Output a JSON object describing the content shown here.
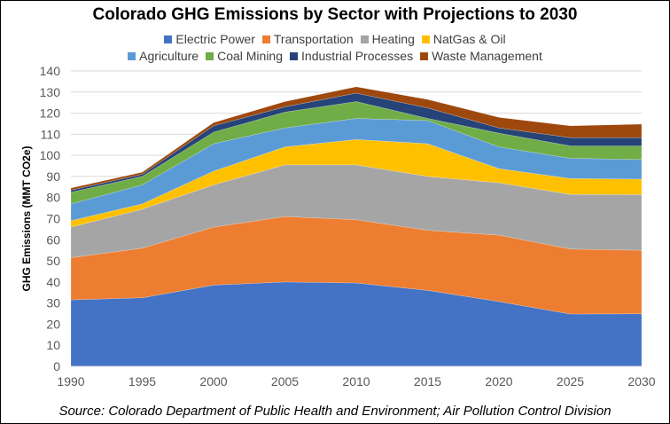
{
  "chart_data": {
    "type": "area",
    "stacked": true,
    "title": "Colorado GHG Emissions by Sector with Projections to 2030",
    "ylabel": "GHG Emissions (MMT CO2e)",
    "xlabel": "",
    "ylim": [
      0,
      140
    ],
    "ytick_step": 10,
    "grid": true,
    "legend_placement": "top",
    "x": [
      1990,
      1995,
      2000,
      2005,
      2010,
      2015,
      2020,
      2025,
      2030
    ],
    "series": [
      {
        "name": "Electric Power",
        "color": "#4472C4",
        "values": [
          31.5,
          32.5,
          38.5,
          40,
          39.5,
          36,
          30.7,
          24.8,
          24.9
        ]
      },
      {
        "name": "Transportation",
        "color": "#ED7D31",
        "values": [
          20,
          23.5,
          27.5,
          31,
          30,
          28.5,
          31.5,
          30.8,
          30.1
        ]
      },
      {
        "name": "Heating",
        "color": "#A5A5A5",
        "values": [
          14.5,
          18.5,
          20,
          24.5,
          26,
          25.5,
          24.8,
          25.9,
          26.4
        ]
      },
      {
        "name": "NatGas & Oil",
        "color": "#FFC000",
        "values": [
          3,
          2.5,
          6.5,
          8.5,
          12,
          15.5,
          6.7,
          7.5,
          7.3
        ]
      },
      {
        "name": "Agriculture",
        "color": "#5B9BD5",
        "values": [
          8,
          9,
          13,
          9,
          10,
          11,
          10.3,
          9.6,
          9.3
        ]
      },
      {
        "name": "Coal Mining",
        "color": "#70AD47",
        "values": [
          5.5,
          4,
          5.5,
          7.5,
          8,
          1,
          6.5,
          5.9,
          6.5
        ]
      },
      {
        "name": "Industrial Processes",
        "color": "#264478",
        "values": [
          1,
          1,
          3,
          2.5,
          4,
          5,
          2.5,
          3.9,
          3.9
        ]
      },
      {
        "name": "Waste Management",
        "color": "#9E480E",
        "values": [
          1,
          1,
          1.5,
          2.5,
          3,
          4,
          5,
          5.6,
          6.4
        ]
      }
    ],
    "source": "Source: Colorado Department of Public Health and Environment; Air Pollution Control Division"
  }
}
